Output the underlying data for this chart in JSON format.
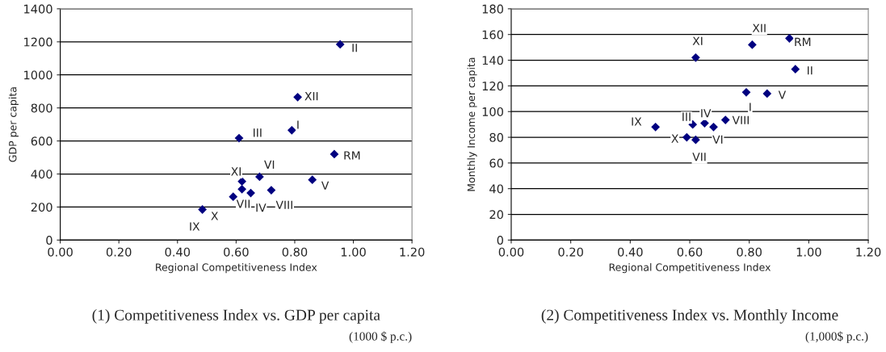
{
  "chart_data": [
    {
      "type": "scatter",
      "title": "(1) Competitiveness Index vs. GDP per capita",
      "subtitle": "(1000 $ p.c.)",
      "xlabel": "Regional Competitiveness Index",
      "ylabel": "GDP per capita",
      "x": [
        0.955,
        0.81,
        0.79,
        0.61,
        0.935,
        0.68,
        0.86,
        0.62,
        0.62,
        0.59,
        0.65,
        0.72,
        0.485
      ],
      "values": [
        1185,
        865,
        665,
        617,
        520,
        383,
        365,
        355,
        308,
        262,
        285,
        302,
        185
      ],
      "color": "#000080",
      "marker": "diamond",
      "xlim": [
        0,
        1.2
      ],
      "xticks": [
        {
          "value": 0,
          "label": "0.00"
        },
        {
          "value": 0.2,
          "label": "0.20"
        },
        {
          "value": 0.4,
          "label": "0.40"
        },
        {
          "value": 0.6,
          "label": "0.60"
        },
        {
          "value": 0.8,
          "label": "0.80"
        },
        {
          "value": 1,
          "label": "1.00"
        },
        {
          "value": 1.2,
          "label": "1.20"
        }
      ],
      "ylim": [
        0,
        1400
      ],
      "yticks": [
        0,
        200,
        400,
        600,
        800,
        1000,
        1200,
        1400
      ],
      "grid": "y",
      "annotations": [
        {
          "text": "II",
          "x": 0.955,
          "y": 1185
        },
        {
          "text": "XII",
          "x": 0.81,
          "y": 865
        },
        {
          "text": "I",
          "x": 0.79,
          "y": 665
        },
        {
          "text": "III",
          "x": 0.61,
          "y": 617
        },
        {
          "text": "RM",
          "x": 0.935,
          "y": 520
        },
        {
          "text": "VI",
          "x": 0.68,
          "y": 383
        },
        {
          "text": "V",
          "x": 0.86,
          "y": 365
        },
        {
          "text": "XI",
          "x": 0.62,
          "y": 355
        },
        {
          "text": "VII",
          "x": 0.62,
          "y": 308
        },
        {
          "text": "X",
          "x": 0.59,
          "y": 262
        },
        {
          "text": "IV",
          "x": 0.65,
          "y": 285
        },
        {
          "text": "VIII",
          "x": 0.72,
          "y": 302
        },
        {
          "text": "IX",
          "x": 0.485,
          "y": 185
        }
      ]
    },
    {
      "type": "scatter",
      "title": "(2) Competitiveness Index vs. Monthly Income",
      "subtitle": "(1,000$ p.c.)",
      "xlabel": "Regional Competitiveness Index",
      "ylabel": "Monthly Income per capita",
      "x": [
        0.485,
        0.59,
        0.62,
        0.61,
        0.65,
        0.68,
        0.72,
        0.79,
        0.86,
        0.62,
        0.81,
        0.935,
        0.955
      ],
      "values": [
        88,
        80,
        78,
        90,
        91,
        88,
        93.5,
        115,
        114,
        142,
        152,
        157,
        133
      ],
      "color": "#000080",
      "marker": "diamond",
      "xlim": [
        0,
        1.2
      ],
      "xticks": [
        {
          "value": 0,
          "label": "0.00"
        },
        {
          "value": 0.2,
          "label": "0.20"
        },
        {
          "value": 0.4,
          "label": "0.40"
        },
        {
          "value": 0.6,
          "label": "0.60"
        },
        {
          "value": 0.8,
          "label": "0.80"
        },
        {
          "value": 1,
          "label": "1.00"
        },
        {
          "value": 1.2,
          "label": "1.20"
        }
      ],
      "ylim": [
        0,
        180
      ],
      "yticks": [
        0,
        20,
        40,
        60,
        80,
        100,
        120,
        140,
        160,
        180
      ],
      "grid": "y",
      "annotations": [
        {
          "text": "IX",
          "x": 0.485,
          "y": 88
        },
        {
          "text": "X",
          "x": 0.59,
          "y": 80
        },
        {
          "text": "VII",
          "x": 0.62,
          "y": 78
        },
        {
          "text": "III",
          "x": 0.61,
          "y": 90
        },
        {
          "text": "IV",
          "x": 0.65,
          "y": 91
        },
        {
          "text": "VI",
          "x": 0.68,
          "y": 88
        },
        {
          "text": "VIII",
          "x": 0.72,
          "y": 93.5
        },
        {
          "text": "I",
          "x": 0.79,
          "y": 115
        },
        {
          "text": "V",
          "x": 0.86,
          "y": 114
        },
        {
          "text": "XI",
          "x": 0.62,
          "y": 142
        },
        {
          "text": "XII",
          "x": 0.81,
          "y": 152
        },
        {
          "text": "RM",
          "x": 0.935,
          "y": 157
        },
        {
          "text": "II",
          "x": 0.955,
          "y": 133
        }
      ]
    }
  ]
}
